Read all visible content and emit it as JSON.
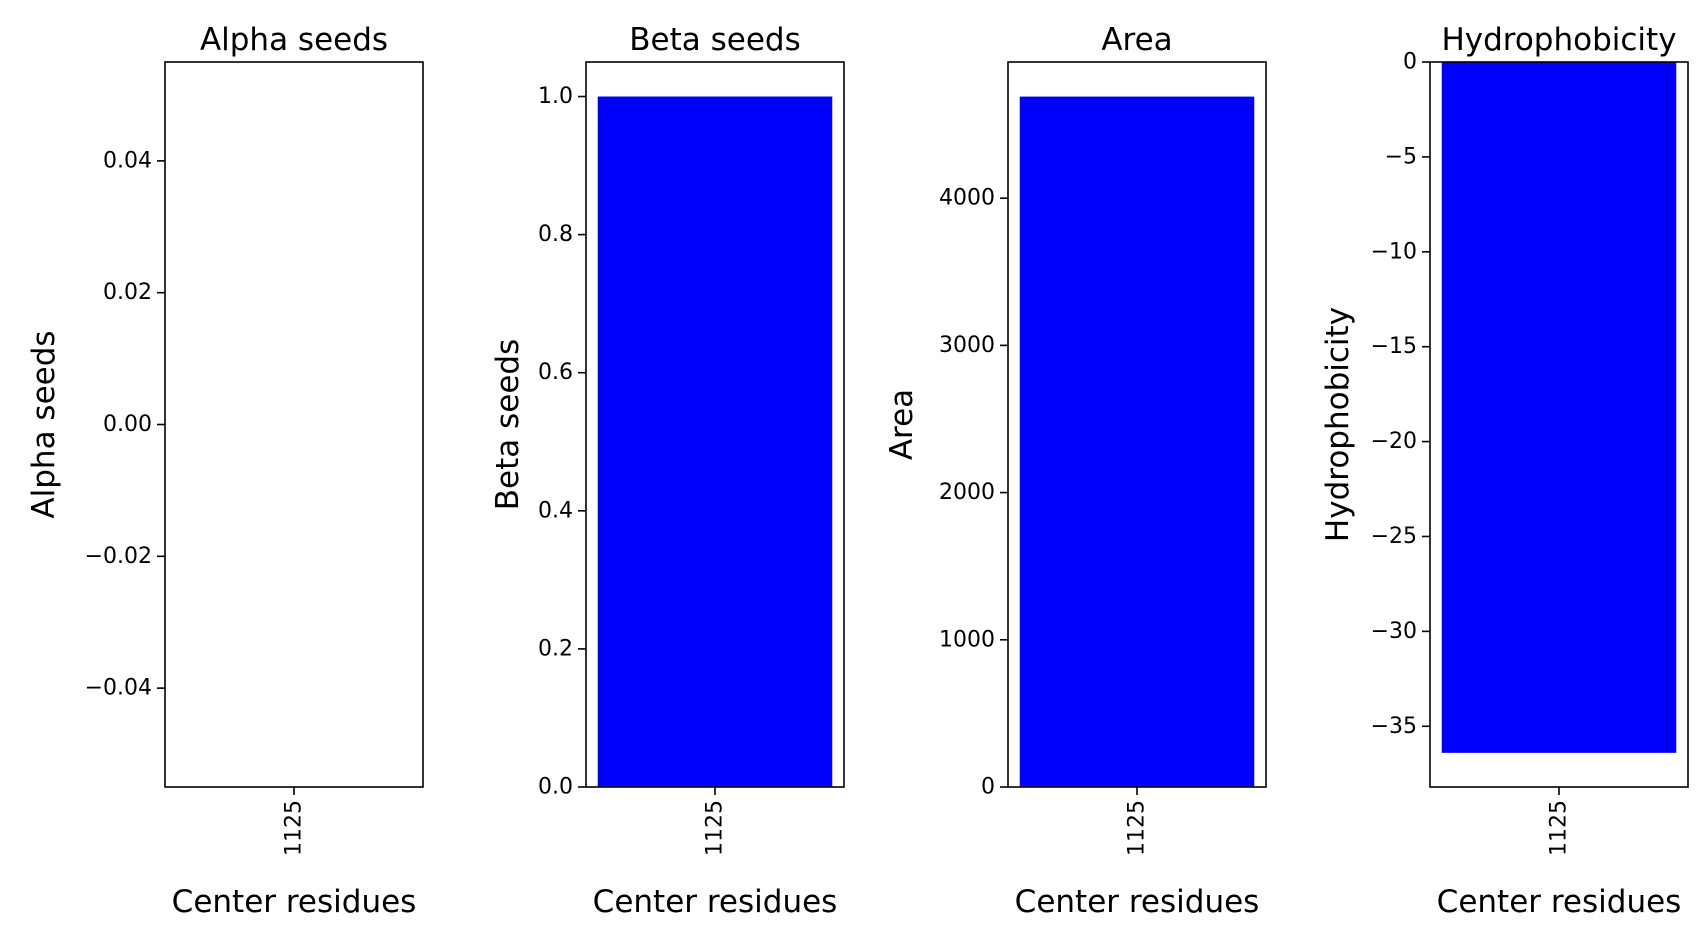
{
  "chart_data": [
    {
      "type": "bar",
      "title": "Alpha seeds",
      "xlabel": "Center residues",
      "ylabel": "Alpha seeds",
      "categories": [
        "1125"
      ],
      "values": [
        0
      ],
      "ylim": [
        -0.055,
        0.055
      ],
      "yticks": [
        -0.04,
        -0.02,
        0.0,
        0.02,
        0.04
      ],
      "ytick_labels": [
        "−0.04",
        "−0.02",
        "0.00",
        "0.02",
        "0.04"
      ],
      "color": "#0000ff",
      "grid": false
    },
    {
      "type": "bar",
      "title": "Beta seeds",
      "xlabel": "Center residues",
      "ylabel": "Beta seeds",
      "categories": [
        "1125"
      ],
      "values": [
        1.0
      ],
      "ylim": [
        0,
        1.05
      ],
      "yticks": [
        0.0,
        0.2,
        0.4,
        0.6,
        0.8,
        1.0
      ],
      "ytick_labels": [
        "0.0",
        "0.2",
        "0.4",
        "0.6",
        "0.8",
        "1.0"
      ],
      "color": "#0000ff",
      "grid": false
    },
    {
      "type": "bar",
      "title": "Area",
      "xlabel": "Center residues",
      "ylabel": "Area",
      "categories": [
        "1125"
      ],
      "values": [
        4690
      ],
      "ylim": [
        0,
        4925
      ],
      "yticks": [
        0,
        1000,
        2000,
        3000,
        4000
      ],
      "ytick_labels": [
        "0",
        "1000",
        "2000",
        "3000",
        "4000"
      ],
      "color": "#0000ff",
      "grid": false
    },
    {
      "type": "bar",
      "title": "Hydrophobicity",
      "xlabel": "Center residues",
      "ylabel": "Hydrophobicity",
      "categories": [
        "1125"
      ],
      "values": [
        -36.4
      ],
      "ylim": [
        -38.2,
        0
      ],
      "yticks": [
        0,
        -5,
        -10,
        -15,
        -20,
        -25,
        -30,
        -35
      ],
      "ytick_labels": [
        "0",
        "−5",
        "−10",
        "−15",
        "−20",
        "−25",
        "−30",
        "−35"
      ],
      "color": "#0000ff",
      "grid": false
    }
  ]
}
